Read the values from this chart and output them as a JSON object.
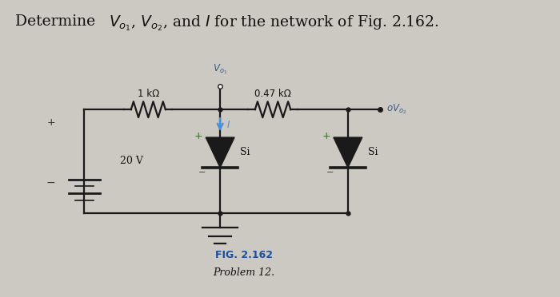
{
  "title_plain": "Determine ",
  "title_vo1": "V",
  "title_rest": ", and I for the network of Fig. 2.162.",
  "fig_label": "FIG. 2.162",
  "fig_sublabel": "Problem 12.",
  "bg_color": "#ccc8c2",
  "resistor1_label": "1 kΩ",
  "resistor2_label": "0.47 kΩ",
  "voltage_label": "20 V",
  "vo1_label": "Vo₁",
  "vo2_label": "oVo₂",
  "diode1_label": "Si",
  "diode2_label": "Si",
  "current_label": "I",
  "line_color": "#1a1a1a",
  "diode_fill": "#1a1a1a",
  "current_arrow_color": "#4a90d9",
  "plus_color": "#4a7a3a",
  "minus_color": "#8a2020",
  "fig_label_color": "#1a4fa0",
  "vo_label_color": "#4a6aa0",
  "title_fontsize": 13.5,
  "label_fontsize": 9,
  "small_fontsize": 8.5,
  "lw": 1.6
}
